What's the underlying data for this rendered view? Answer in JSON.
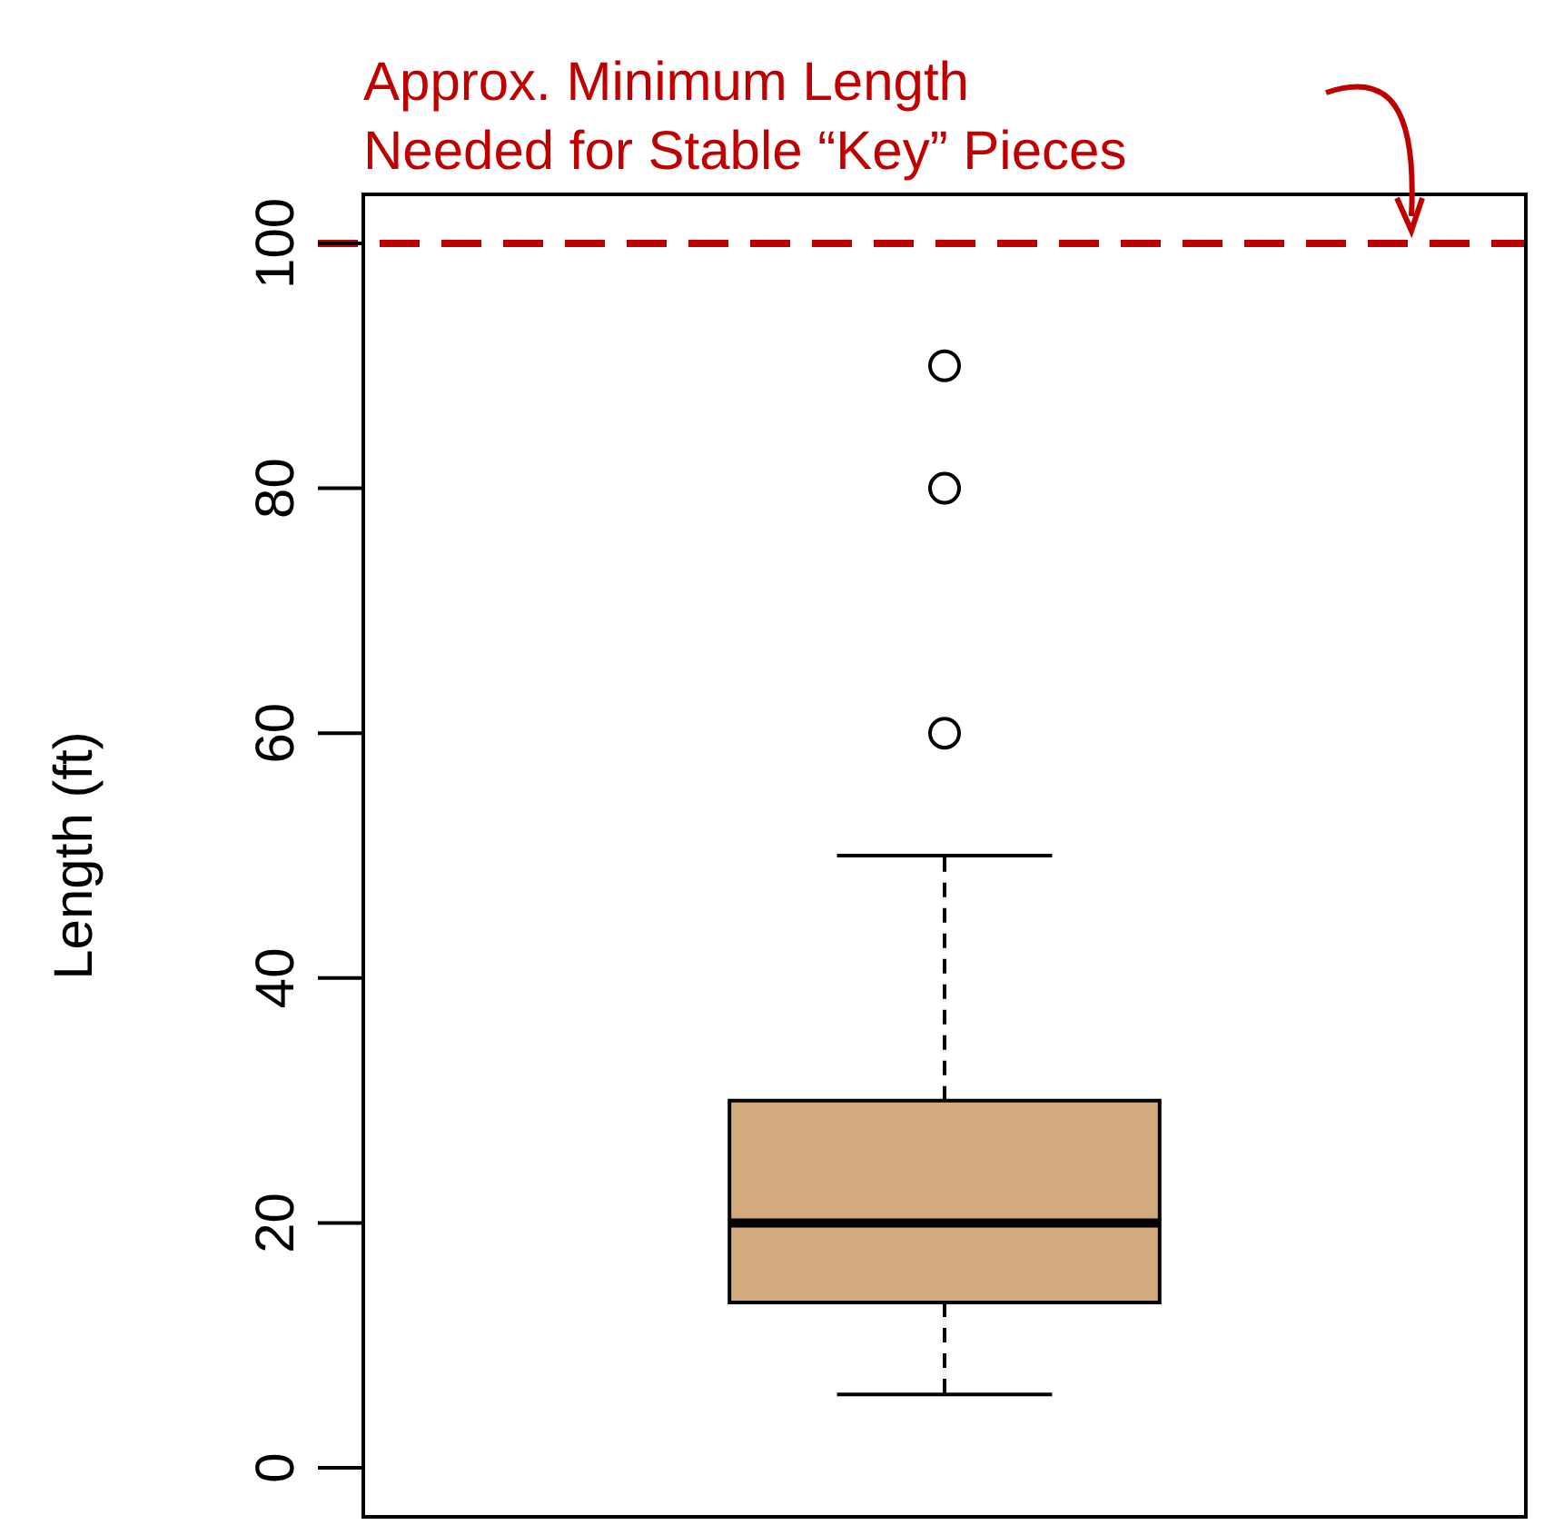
{
  "chart_data": {
    "type": "box",
    "ylabel": "Length (ft)",
    "categories": [
      null
    ],
    "color": "#d2aa7d",
    "boxes": [
      {
        "low": 6,
        "q1": 13.5,
        "median": 20,
        "q3": 30,
        "high": 50,
        "outliers": [
          60,
          80,
          90
        ]
      }
    ],
    "ylim": [
      -4,
      104
    ],
    "yticks": [
      0,
      20,
      40,
      60,
      80,
      100
    ],
    "grid": false,
    "legend": false,
    "tick_labels": "y",
    "ref_lines": [
      {
        "axis": "y",
        "value": 100,
        "label": "Approx. Minimum Length\nNeeded for Stable “Key” Pieces",
        "color": "#c00000",
        "line_style": "dashed"
      }
    ]
  }
}
